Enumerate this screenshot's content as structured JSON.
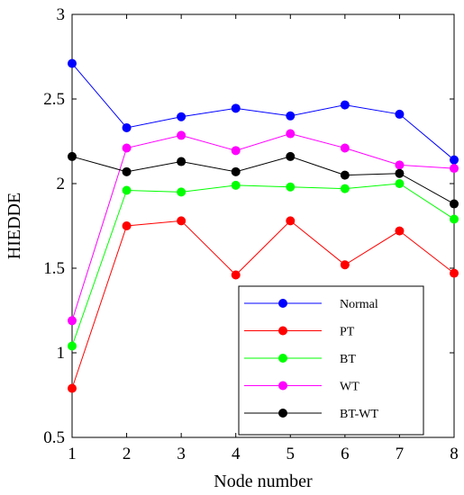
{
  "chart_data": {
    "type": "line",
    "title": "",
    "xlabel": "Node number",
    "ylabel": "HIEDDE",
    "x": [
      1,
      2,
      3,
      4,
      5,
      6,
      7,
      8
    ],
    "xlim": [
      1,
      8
    ],
    "ylim": [
      0.5,
      3
    ],
    "x_ticks": [
      "1",
      "2",
      "3",
      "4",
      "5",
      "6",
      "7",
      "8"
    ],
    "y_ticks": [
      "0.5",
      "1",
      "1.5",
      "2",
      "2.5",
      "3"
    ],
    "y_tick_values": [
      0.5,
      1,
      1.5,
      2,
      2.5,
      3
    ],
    "grid": false,
    "legend_position": "lower-right",
    "series": [
      {
        "name": "Normal",
        "color": "#0000ff",
        "values": [
          2.71,
          2.33,
          2.395,
          2.445,
          2.4,
          2.465,
          2.41,
          2.14
        ]
      },
      {
        "name": "PT",
        "color": "#ff0000",
        "values": [
          0.79,
          1.75,
          1.78,
          1.46,
          1.78,
          1.52,
          1.72,
          1.47
        ]
      },
      {
        "name": "BT",
        "color": "#00ff00",
        "values": [
          1.04,
          1.96,
          1.95,
          1.99,
          1.98,
          1.97,
          2.0,
          1.79
        ]
      },
      {
        "name": "WT",
        "color": "#ff00ff",
        "values": [
          1.19,
          2.21,
          2.285,
          2.195,
          2.295,
          2.21,
          2.11,
          2.09
        ]
      },
      {
        "name": "BT-WT",
        "color": "#000000",
        "values": [
          2.16,
          2.07,
          2.13,
          2.07,
          2.16,
          2.05,
          2.06,
          1.88
        ]
      }
    ]
  }
}
